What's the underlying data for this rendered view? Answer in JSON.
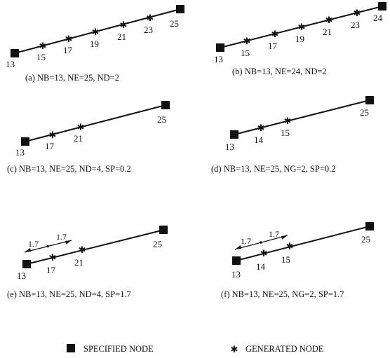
{
  "panels": [
    {
      "id": "a",
      "caption": "(a) NB=13, NE=25, ND=2",
      "start_node": "13",
      "end_node": "25",
      "generated_nodes": [
        "15",
        "17",
        "19",
        "21",
        "23"
      ],
      "dimension_labels": []
    },
    {
      "id": "b",
      "caption": "(b) NB=13, NE=24, ND=2",
      "start_node": "13",
      "end_node": "24",
      "generated_nodes": [
        "15",
        "17",
        "19",
        "21",
        "23"
      ],
      "dimension_labels": []
    },
    {
      "id": "c",
      "caption": "(c) NB=13, NE=25, ND=4, SP=0.2",
      "start_node": "13",
      "end_node": "25",
      "generated_nodes": [
        "17",
        "21"
      ],
      "dimension_labels": []
    },
    {
      "id": "d",
      "caption": "(d) NB=13, NE=25, NG=2, SP=0.2",
      "start_node": "13",
      "end_node": "25",
      "generated_nodes": [
        "14",
        "15"
      ],
      "dimension_labels": []
    },
    {
      "id": "e",
      "caption": "(e) NB=13, NE=25, ND=4, SP=1.7",
      "start_node": "13",
      "end_node": "25",
      "generated_nodes": [
        "17",
        "21"
      ],
      "dimension_labels": [
        "1.7",
        "1.7"
      ]
    },
    {
      "id": "f",
      "caption": "(f) NB=13, NE=25, NG=2, SP=1.7",
      "start_node": "13",
      "end_node": "25",
      "generated_nodes": [
        "14",
        "15"
      ],
      "dimension_labels": [
        "1.7",
        "1.7"
      ]
    }
  ],
  "legend": {
    "specified_label": "SPECIFIED NODE",
    "generated_label": "GENERATED NODE"
  }
}
